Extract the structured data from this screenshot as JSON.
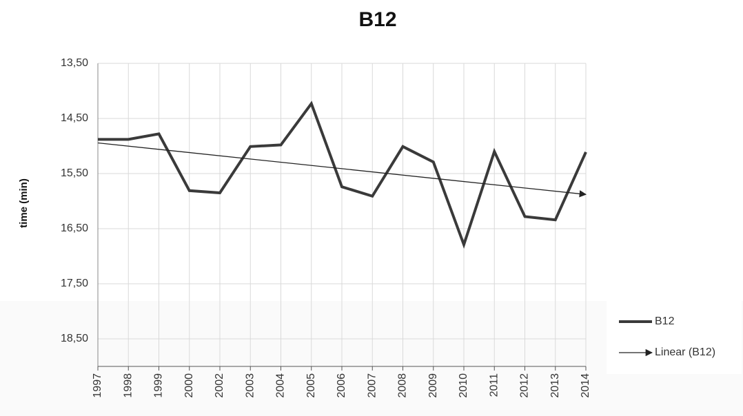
{
  "chart_data": {
    "type": "line",
    "title": "B12",
    "y_label": "time (min)",
    "categories": [
      "1997",
      "1998",
      "1999",
      "2000",
      "2002",
      "2003",
      "2004",
      "2005",
      "2006",
      "2007",
      "2008",
      "2009",
      "2010",
      "2011",
      "2012",
      "2013",
      "2014"
    ],
    "series": [
      {
        "name": "B12",
        "color": "#3a3a3a",
        "values": [
          14.88,
          14.88,
          14.78,
          15.81,
          15.85,
          15.01,
          14.98,
          14.23,
          15.74,
          15.91,
          15.01,
          15.29,
          16.79,
          15.1,
          16.28,
          16.34,
          15.11
        ]
      }
    ],
    "trendline": {
      "name": "Linear (B12)",
      "type": "linear",
      "color": "#222222"
    },
    "ylim": [
      13.5,
      19.0
    ],
    "y_inverted": true,
    "yticks": [
      {
        "value": 13.5,
        "label": "13,50"
      },
      {
        "value": 14.5,
        "label": "14,50"
      },
      {
        "value": 15.5,
        "label": "15,50"
      },
      {
        "value": 16.5,
        "label": "16,50"
      },
      {
        "value": 17.5,
        "label": "17,50"
      },
      {
        "value": 18.5,
        "label": "18,50"
      }
    ],
    "grid": true,
    "legend": "right"
  }
}
